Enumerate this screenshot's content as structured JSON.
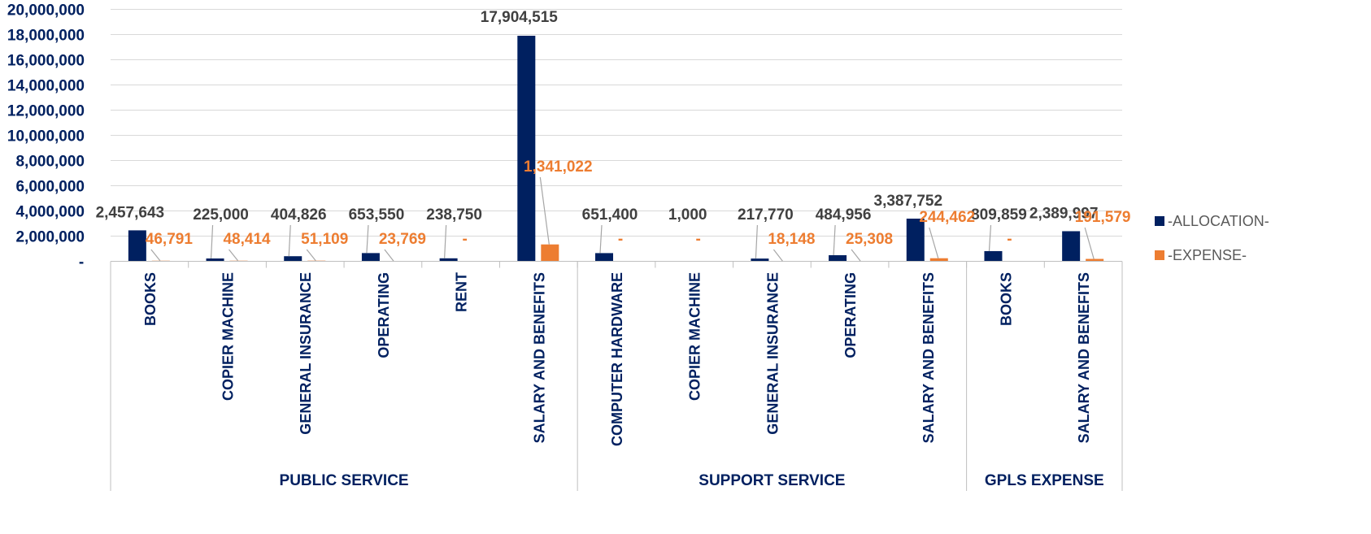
{
  "chart_data": {
    "type": "bar",
    "title": "",
    "xlabel": "",
    "ylabel": "",
    "ylim": [
      0,
      20000000
    ],
    "yticks": [
      0,
      2000000,
      4000000,
      6000000,
      8000000,
      10000000,
      12000000,
      14000000,
      16000000,
      18000000,
      20000000
    ],
    "ytick_labels": [
      "-",
      "2,000,000",
      "4,000,000",
      "6,000,000",
      "8,000,000",
      "10,000,000",
      "12,000,000",
      "14,000,000",
      "16,000,000",
      "18,000,000",
      "20,000,000"
    ],
    "grid": true,
    "legend_position": "right",
    "groups": [
      {
        "name": "PUBLIC SERVICE",
        "categories": [
          "BOOKS",
          "COPIER MACHINE",
          "GENERAL INSURANCE",
          "OPERATING",
          "RENT",
          "SALARY AND BENEFITS"
        ]
      },
      {
        "name": "SUPPORT SERVICE",
        "categories": [
          "COMPUTER HARDWARE",
          "COPIER MACHINE",
          "GENERAL INSURANCE",
          "OPERATING",
          "SALARY AND BENEFITS"
        ]
      },
      {
        "name": "GPLS EXPENSE",
        "categories": [
          "BOOKS",
          "SALARY AND BENEFITS"
        ]
      }
    ],
    "series": [
      {
        "name": "-ALLOCATION-",
        "color": "#002060",
        "values": [
          2457643,
          225000,
          404826,
          653550,
          238750,
          17904515,
          651400,
          1000,
          217770,
          484956,
          3387752,
          809859,
          2389997
        ],
        "labels": [
          "2,457,643",
          "225,000",
          "404,826",
          "653,550",
          "238,750",
          "17,904,515",
          "651,400",
          "1,000",
          "217,770",
          "484,956",
          "3,387,752",
          "809,859",
          "2,389,997"
        ]
      },
      {
        "name": "-EXPENSE-",
        "color": "#ED7D31",
        "values": [
          46791,
          48414,
          51109,
          23769,
          0,
          1341022,
          0,
          0,
          18148,
          25308,
          244462,
          0,
          191579
        ],
        "labels": [
          "46,791",
          "48,414",
          "51,109",
          "23,769",
          "-",
          "1,341,022",
          "-",
          "-",
          "18,148",
          "25,308",
          "244,462",
          "-",
          "191,579"
        ]
      }
    ]
  }
}
